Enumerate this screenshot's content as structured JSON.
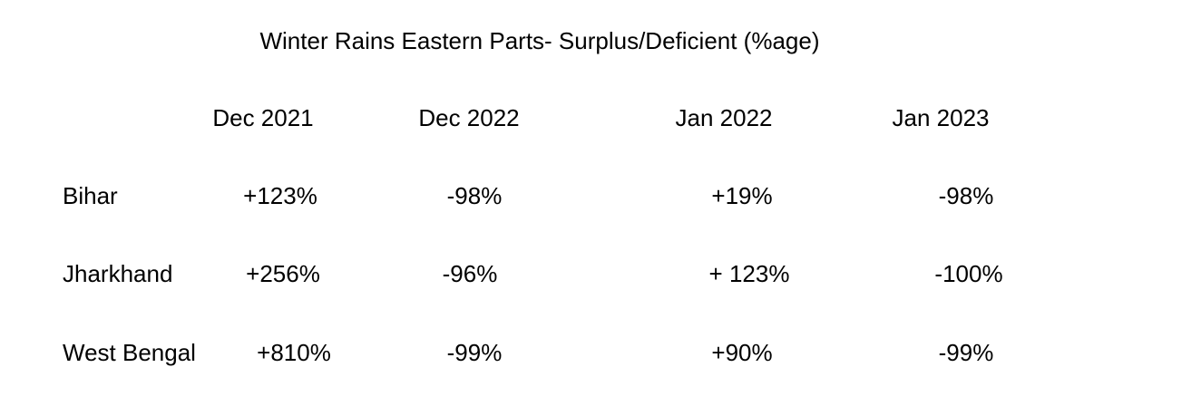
{
  "title": "Winter Rains Eastern Parts- Surplus/Deficient (%age)",
  "table": {
    "headers": [
      "Dec 2021",
      "Dec 2022",
      "Jan 2022",
      "Jan 2023"
    ],
    "rows": [
      [
        "Bihar",
        "+123%",
        "-98%",
        "+19%",
        "-98%"
      ],
      [
        "Jharkhand",
        "+256%",
        "-96%",
        "+ 123%",
        "-100%"
      ],
      [
        "West Bengal",
        "+810%",
        "-99%",
        "+90%",
        "-99%"
      ]
    ]
  }
}
